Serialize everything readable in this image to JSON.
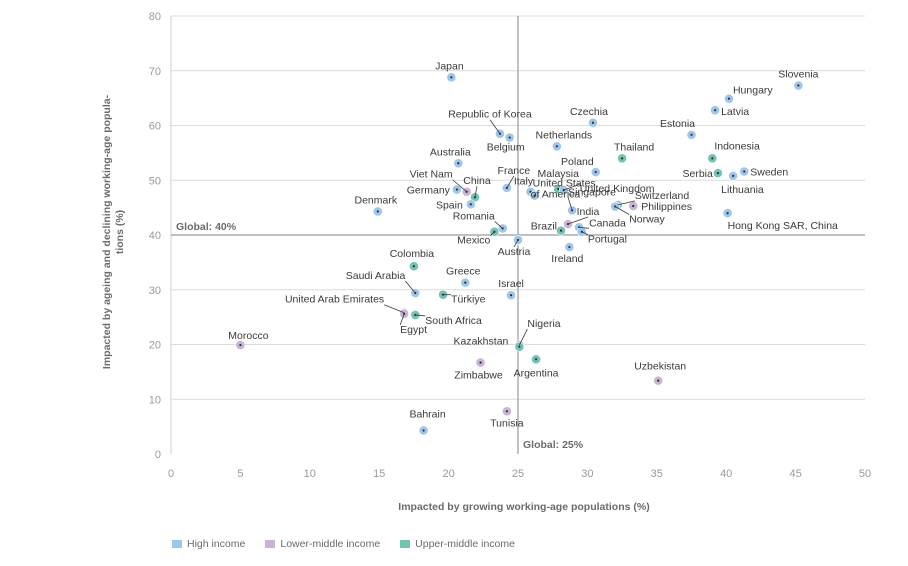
{
  "chart_data": {
    "type": "scatter",
    "title": "",
    "xlabel": "Impacted by growing working-age populations (%)",
    "ylabel_lines": [
      "Impacted by ageing and declining working-age popula-",
      "tions (%)"
    ],
    "xlim": [
      0,
      50
    ],
    "ylim": [
      0,
      80
    ],
    "xticks": [
      0,
      5,
      10,
      15,
      20,
      25,
      30,
      35,
      40,
      45,
      50
    ],
    "yticks": [
      0,
      10,
      20,
      30,
      40,
      50,
      60,
      70,
      80
    ],
    "reference_lines": {
      "x": {
        "value": 25,
        "label": "Global: 25%"
      },
      "y": {
        "value": 40,
        "label": "Global: 40%"
      }
    },
    "categories": [
      {
        "key": "high",
        "name": "High income",
        "color": "#9ec6ea"
      },
      {
        "key": "lower",
        "name": "Lower-middle income",
        "color": "#c9b2d4"
      },
      {
        "key": "upper",
        "name": "Upper-middle income",
        "color": "#74c2b4"
      }
    ],
    "points": [
      {
        "name": "Japan",
        "x": 20.2,
        "y": 68.8,
        "cat": "high"
      },
      {
        "name": "Slovenia",
        "x": 45.2,
        "y": 67.3,
        "cat": "high"
      },
      {
        "name": "Hungary",
        "x": 40.2,
        "y": 64.9,
        "cat": "high"
      },
      {
        "name": "Latvia",
        "x": 39.2,
        "y": 62.8,
        "cat": "high"
      },
      {
        "name": "Czechia",
        "x": 30.4,
        "y": 60.5,
        "cat": "high"
      },
      {
        "name": "Republic of Korea",
        "x": 23.7,
        "y": 58.5,
        "cat": "high"
      },
      {
        "name": "Belgium",
        "x": 24.4,
        "y": 57.8,
        "cat": "high"
      },
      {
        "name": "Estonia",
        "x": 37.5,
        "y": 58.3,
        "cat": "high"
      },
      {
        "name": "Netherlands",
        "x": 27.8,
        "y": 56.2,
        "cat": "high"
      },
      {
        "name": "Australia",
        "x": 20.7,
        "y": 53.1,
        "cat": "high"
      },
      {
        "name": "Thailand",
        "x": 32.5,
        "y": 54.0,
        "cat": "upper"
      },
      {
        "name": "Indonesia",
        "x": 39.0,
        "y": 54.0,
        "cat": "upper"
      },
      {
        "name": "Poland",
        "x": 30.6,
        "y": 51.5,
        "cat": "high"
      },
      {
        "name": "Serbia",
        "x": 39.4,
        "y": 51.3,
        "cat": "upper"
      },
      {
        "name": "Sweden",
        "x": 41.3,
        "y": 51.6,
        "cat": "high"
      },
      {
        "name": "Lithuania",
        "x": 40.5,
        "y": 50.8,
        "cat": "high"
      },
      {
        "name": "Viet Nam",
        "x": 21.3,
        "y": 47.9,
        "cat": "lower"
      },
      {
        "name": "Germany",
        "x": 20.6,
        "y": 48.3,
        "cat": "high"
      },
      {
        "name": "China",
        "x": 21.9,
        "y": 46.9,
        "cat": "upper"
      },
      {
        "name": "France",
        "x": 24.2,
        "y": 48.6,
        "cat": "high"
      },
      {
        "name": "Malaysia",
        "x": 27.9,
        "y": 48.4,
        "cat": "upper"
      },
      {
        "name": "Italy",
        "x": 25.9,
        "y": 47.9,
        "cat": "high"
      },
      {
        "name": "United Kingdom",
        "x": 28.3,
        "y": 48.2,
        "cat": "high"
      },
      {
        "name": "Spain",
        "x": 21.6,
        "y": 45.6,
        "cat": "high"
      },
      {
        "name": "United States of America",
        "x": 26.2,
        "y": 47.2,
        "cat": "high"
      },
      {
        "name": "Switzerland",
        "x": 32.2,
        "y": 45.5,
        "cat": "high"
      },
      {
        "name": "Singapore",
        "x": 28.9,
        "y": 44.5,
        "cat": "high"
      },
      {
        "name": "Philippines",
        "x": 33.3,
        "y": 45.3,
        "cat": "lower"
      },
      {
        "name": "Norway",
        "x": 32.0,
        "y": 45.2,
        "cat": "high"
      },
      {
        "name": "Denmark",
        "x": 14.9,
        "y": 44.3,
        "cat": "high"
      },
      {
        "name": "Hong Kong SAR, China",
        "x": 40.1,
        "y": 44.0,
        "cat": "high"
      },
      {
        "name": "India",
        "x": 28.6,
        "y": 42.0,
        "cat": "lower"
      },
      {
        "name": "Romania",
        "x": 23.9,
        "y": 41.2,
        "cat": "high"
      },
      {
        "name": "Mexico",
        "x": 23.3,
        "y": 40.6,
        "cat": "upper"
      },
      {
        "name": "Canada",
        "x": 29.4,
        "y": 41.4,
        "cat": "high"
      },
      {
        "name": "Brazil",
        "x": 28.1,
        "y": 40.8,
        "cat": "upper"
      },
      {
        "name": "Portugal",
        "x": 29.6,
        "y": 40.6,
        "cat": "high"
      },
      {
        "name": "Austria",
        "x": 25.0,
        "y": 39.1,
        "cat": "high"
      },
      {
        "name": "Ireland",
        "x": 28.7,
        "y": 37.8,
        "cat": "high"
      },
      {
        "name": "Colombia",
        "x": 17.5,
        "y": 34.3,
        "cat": "upper"
      },
      {
        "name": "Greece",
        "x": 21.2,
        "y": 31.3,
        "cat": "high"
      },
      {
        "name": "Saudi Arabia",
        "x": 17.6,
        "y": 29.4,
        "cat": "high"
      },
      {
        "name": "Türkiye",
        "x": 19.6,
        "y": 29.1,
        "cat": "upper"
      },
      {
        "name": "Israel",
        "x": 24.5,
        "y": 29.0,
        "cat": "high"
      },
      {
        "name": "United Arab Emirates",
        "x": 16.8,
        "y": 25.8,
        "cat": "high"
      },
      {
        "name": "South Africa",
        "x": 17.6,
        "y": 25.4,
        "cat": "upper"
      },
      {
        "name": "Egypt",
        "x": 16.8,
        "y": 25.6,
        "cat": "lower"
      },
      {
        "name": "Morocco",
        "x": 5.0,
        "y": 19.9,
        "cat": "lower"
      },
      {
        "name": "Nigeria",
        "x": 25.1,
        "y": 19.9,
        "cat": "lower"
      },
      {
        "name": "Kazakhstan",
        "x": 25.1,
        "y": 19.6,
        "cat": "upper"
      },
      {
        "name": "Argentina",
        "x": 26.3,
        "y": 17.3,
        "cat": "upper"
      },
      {
        "name": "Zimbabwe",
        "x": 22.3,
        "y": 16.7,
        "cat": "lower"
      },
      {
        "name": "Uzbekistan",
        "x": 35.1,
        "y": 13.4,
        "cat": "lower"
      },
      {
        "name": "Tunisia",
        "x": 24.2,
        "y": 7.8,
        "cat": "lower"
      },
      {
        "name": "Bahrain",
        "x": 18.2,
        "y": 4.3,
        "cat": "high"
      }
    ]
  }
}
